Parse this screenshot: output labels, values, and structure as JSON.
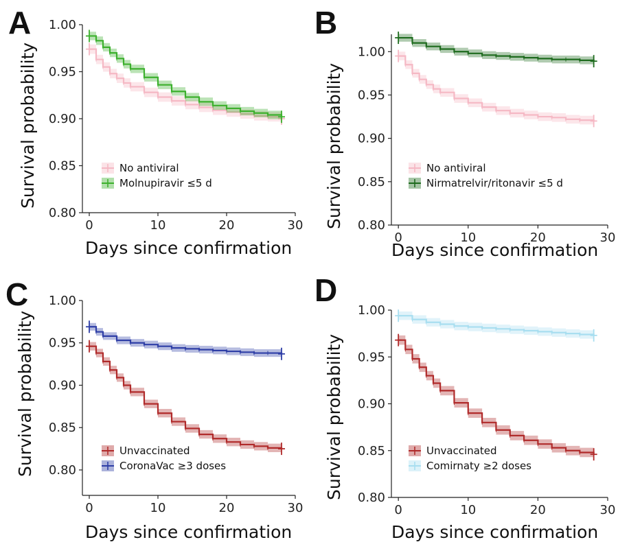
{
  "chart_data": [
    {
      "panel": "A",
      "type": "line",
      "xlabel": "Days since confirmation",
      "ylabel": "Survival probability",
      "xlim": [
        -1,
        30
      ],
      "ylim": [
        0.8,
        1.0
      ],
      "xticks": [
        0,
        10,
        20,
        30
      ],
      "yticks": [
        0.8,
        0.85,
        0.9,
        0.95,
        1.0
      ],
      "ytick_labels": [
        "0.80",
        "0.85",
        "0.90",
        "0.95",
        "1.00"
      ],
      "legend_position": "bottom-left",
      "series": [
        {
          "name": "No antiviral",
          "color": "#f5b8c4",
          "x": [
            0,
            1,
            2,
            3,
            4,
            5,
            6,
            8,
            10,
            12,
            14,
            16,
            18,
            20,
            22,
            24,
            26,
            28
          ],
          "y": [
            0.974,
            0.963,
            0.955,
            0.948,
            0.943,
            0.938,
            0.934,
            0.928,
            0.923,
            0.919,
            0.915,
            0.912,
            0.909,
            0.907,
            0.905,
            0.903,
            0.902,
            0.9
          ]
        },
        {
          "name": "Molnupiravir ≤5 d",
          "color": "#3cb02d",
          "x": [
            0,
            1,
            2,
            3,
            4,
            5,
            6,
            8,
            10,
            12,
            14,
            16,
            18,
            20,
            22,
            24,
            26,
            28
          ],
          "y": [
            0.988,
            0.983,
            0.976,
            0.97,
            0.964,
            0.958,
            0.953,
            0.944,
            0.936,
            0.929,
            0.923,
            0.918,
            0.914,
            0.911,
            0.908,
            0.906,
            0.904,
            0.902
          ]
        }
      ]
    },
    {
      "panel": "B",
      "type": "line",
      "xlabel": "Days since confirmation",
      "ylabel": "Survival probability",
      "xlim": [
        -1,
        30
      ],
      "ylim": [
        0.8,
        1.02
      ],
      "xticks": [
        0,
        10,
        20,
        30
      ],
      "yticks": [
        0.8,
        0.85,
        0.9,
        0.95,
        1.0
      ],
      "ytick_labels": [
        "0.80",
        "0.85",
        "0.90",
        "0.95",
        "1.00"
      ],
      "legend_position": "bottom-left",
      "series": [
        {
          "name": "No antiviral",
          "color": "#f5b8c4",
          "x": [
            0,
            1,
            2,
            3,
            4,
            5,
            6,
            8,
            10,
            12,
            14,
            16,
            18,
            20,
            22,
            24,
            26,
            28
          ],
          "y": [
            0.995,
            0.985,
            0.975,
            0.968,
            0.962,
            0.957,
            0.953,
            0.946,
            0.941,
            0.936,
            0.932,
            0.929,
            0.927,
            0.925,
            0.924,
            0.922,
            0.921,
            0.92
          ]
        },
        {
          "name": "Nirmatrelvir/ritonavir ≤5 d",
          "color": "#1e6b1e",
          "x": [
            0,
            2,
            4,
            6,
            8,
            10,
            12,
            14,
            16,
            18,
            20,
            22,
            24,
            26,
            28
          ],
          "y": [
            1.016,
            1.01,
            1.006,
            1.003,
            1.0,
            0.998,
            0.996,
            0.995,
            0.994,
            0.993,
            0.992,
            0.991,
            0.991,
            0.99,
            0.989
          ]
        }
      ]
    },
    {
      "panel": "C",
      "type": "line",
      "xlabel": "Days since confirmation",
      "ylabel": "Survival probability",
      "xlim": [
        -1,
        30
      ],
      "ylim": [
        0.77,
        1.0
      ],
      "xticks": [
        0,
        10,
        20,
        30
      ],
      "yticks": [
        0.8,
        0.85,
        0.9,
        0.95,
        1.0
      ],
      "ytick_labels": [
        "0.80",
        "0.85",
        "0.90",
        "0.95",
        "1.00"
      ],
      "legend_position": "bottom-left",
      "series": [
        {
          "name": "Unvaccinated",
          "color": "#b02a2a",
          "x": [
            0,
            1,
            2,
            3,
            4,
            5,
            6,
            8,
            10,
            12,
            14,
            16,
            18,
            20,
            22,
            24,
            26,
            28
          ],
          "y": [
            0.946,
            0.938,
            0.928,
            0.918,
            0.909,
            0.9,
            0.892,
            0.878,
            0.867,
            0.857,
            0.849,
            0.842,
            0.837,
            0.833,
            0.83,
            0.828,
            0.826,
            0.825
          ]
        },
        {
          "name": "CoronaVac ≥3 doses",
          "color": "#2e3ea6",
          "x": [
            0,
            1,
            2,
            4,
            6,
            8,
            10,
            12,
            14,
            16,
            18,
            20,
            22,
            24,
            26,
            28
          ],
          "y": [
            0.969,
            0.963,
            0.958,
            0.953,
            0.95,
            0.948,
            0.946,
            0.944,
            0.943,
            0.942,
            0.941,
            0.94,
            0.939,
            0.938,
            0.938,
            0.937
          ]
        }
      ]
    },
    {
      "panel": "D",
      "type": "line",
      "xlabel": "Days since confirmation",
      "ylabel": "Survival probability",
      "xlim": [
        -1,
        30
      ],
      "ylim": [
        0.8,
        1.0
      ],
      "xticks": [
        0,
        10,
        20,
        30
      ],
      "yticks": [
        0.8,
        0.85,
        0.9,
        0.95,
        1.0
      ],
      "ytick_labels": [
        "0.80",
        "0.85",
        "0.90",
        "0.95",
        "1.00"
      ],
      "legend_position": "bottom-left",
      "series": [
        {
          "name": "Unvaccinated",
          "color": "#b02a2a",
          "x": [
            0,
            1,
            2,
            3,
            4,
            5,
            6,
            8,
            10,
            12,
            14,
            16,
            18,
            20,
            22,
            24,
            26,
            28
          ],
          "y": [
            0.968,
            0.958,
            0.948,
            0.939,
            0.93,
            0.922,
            0.914,
            0.901,
            0.89,
            0.88,
            0.872,
            0.866,
            0.861,
            0.857,
            0.853,
            0.85,
            0.848,
            0.846
          ]
        },
        {
          "name": "Comirnaty ≥2 doses",
          "color": "#a8def0",
          "x": [
            0,
            2,
            4,
            6,
            8,
            10,
            12,
            14,
            16,
            18,
            20,
            22,
            24,
            26,
            28
          ],
          "y": [
            0.994,
            0.99,
            0.987,
            0.985,
            0.983,
            0.982,
            0.981,
            0.98,
            0.979,
            0.978,
            0.977,
            0.976,
            0.975,
            0.974,
            0.973
          ]
        }
      ]
    }
  ]
}
